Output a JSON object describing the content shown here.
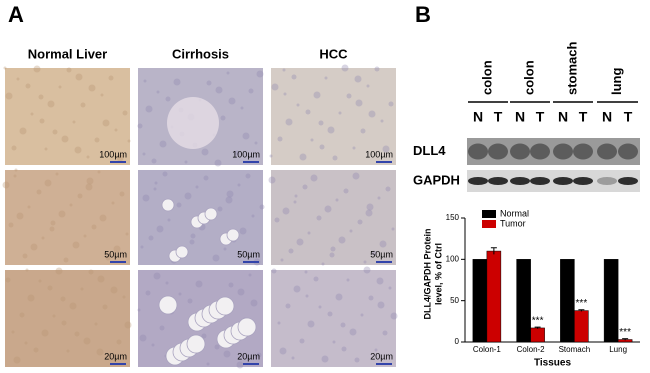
{
  "panel_a": {
    "label": "A",
    "columns": [
      "Normal Liver",
      "Cirrhosis",
      "HCC"
    ],
    "scale_bar_labels": [
      [
        "100µm",
        "100µm",
        "100µm"
      ],
      [
        "50µm",
        "50µm",
        "50µm"
      ],
      [
        "20µm",
        "20µm",
        "20µm"
      ]
    ]
  },
  "panel_b": {
    "label": "B",
    "tissues": [
      "colon",
      "colon",
      "stomach",
      "lung"
    ],
    "lanes": [
      "N",
      "T",
      "N",
      "T",
      "N",
      "T",
      "N",
      "T"
    ],
    "blots": [
      "DLL4",
      "GAPDH"
    ]
  },
  "chart_data": {
    "type": "bar",
    "ylabel": [
      "DLL4/GAPDH Protein",
      "level, % of Ctrl"
    ],
    "xlabel": "Tissues",
    "categories": [
      "Colon-1",
      "Colon-2",
      "Stomach",
      "Lung"
    ],
    "series": [
      {
        "name": "Normal",
        "color": "#000000",
        "values": [
          100,
          100,
          100,
          100
        ]
      },
      {
        "name": "Tumor",
        "color": "#cc0000",
        "values": [
          110,
          17,
          38,
          3
        ],
        "errors": [
          4,
          1,
          1,
          1
        ],
        "significance": [
          null,
          "***",
          "***",
          "***"
        ]
      }
    ],
    "ylim": [
      0,
      150
    ],
    "yticks": [
      0,
      50,
      100,
      150
    ],
    "legend": "upper left"
  }
}
